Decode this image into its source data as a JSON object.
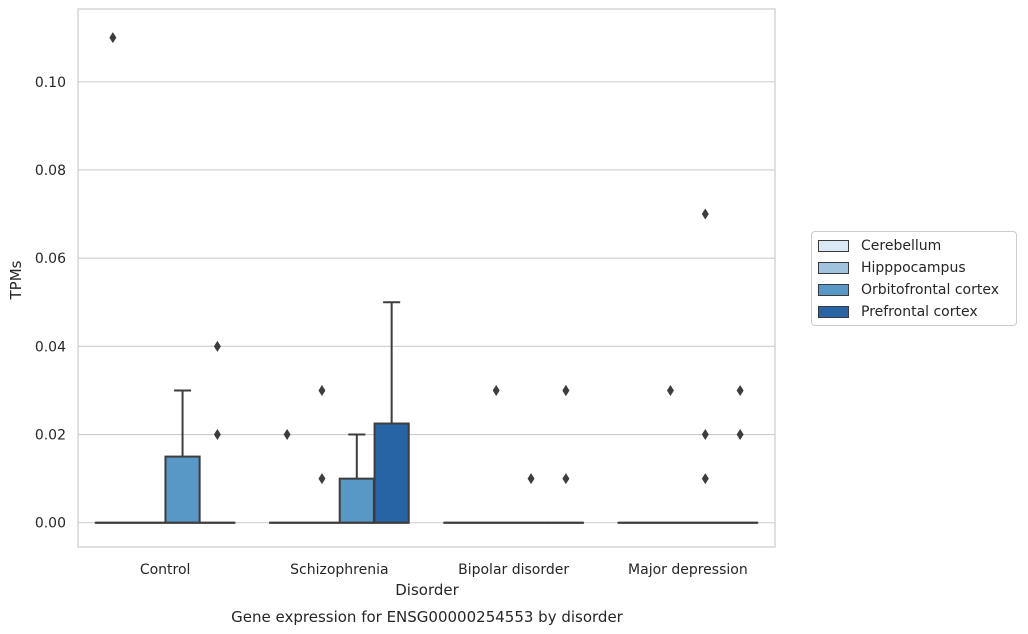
{
  "chart_data": {
    "type": "box",
    "title": "Gene expression for ENSG00000254553 by disorder",
    "xlabel": "Disorder",
    "ylabel": "TPMs",
    "ylim": [
      -0.0055,
      0.1165
    ],
    "yticks": [
      0.0,
      0.02,
      0.04,
      0.06,
      0.08,
      0.1
    ],
    "ytick_labels": [
      "0.00",
      "0.02",
      "0.04",
      "0.06",
      "0.08",
      "0.10"
    ],
    "grid": true,
    "legend_position": "right",
    "categories": [
      "Control",
      "Schizophrenia",
      "Bipolar disorder",
      "Major depression"
    ],
    "series": [
      {
        "name": "Cerebellum",
        "color": "#dbe9f6",
        "boxes": [
          {
            "q1": 0,
            "median": 0,
            "q3": 0,
            "whisker_low": 0,
            "whisker_high": 0,
            "outliers": [
              0.11
            ]
          },
          {
            "q1": 0,
            "median": 0,
            "q3": 0,
            "whisker_low": 0,
            "whisker_high": 0,
            "outliers": [
              0.02
            ]
          },
          {
            "q1": 0,
            "median": 0,
            "q3": 0,
            "whisker_low": 0,
            "whisker_high": 0,
            "outliers": []
          },
          {
            "q1": 0,
            "median": 0,
            "q3": 0,
            "whisker_low": 0,
            "whisker_high": 0,
            "outliers": []
          }
        ]
      },
      {
        "name": "Hipppocampus",
        "color": "#a0c4de",
        "boxes": [
          {
            "q1": 0,
            "median": 0,
            "q3": 0,
            "whisker_low": 0,
            "whisker_high": 0,
            "outliers": []
          },
          {
            "q1": 0,
            "median": 0,
            "q3": 0,
            "whisker_low": 0,
            "whisker_high": 0,
            "outliers": [
              0.01,
              0.03
            ]
          },
          {
            "q1": 0,
            "median": 0,
            "q3": 0,
            "whisker_low": 0,
            "whisker_high": 0,
            "outliers": [
              0.03
            ]
          },
          {
            "q1": 0,
            "median": 0,
            "q3": 0,
            "whisker_low": 0,
            "whisker_high": 0,
            "outliers": [
              0.03
            ]
          }
        ]
      },
      {
        "name": "Orbitofrontal cortex",
        "color": "#5898c6",
        "boxes": [
          {
            "q1": 0,
            "median": 0,
            "q3": 0.015,
            "whisker_low": 0,
            "whisker_high": 0.03,
            "outliers": []
          },
          {
            "q1": 0,
            "median": 0,
            "q3": 0.01,
            "whisker_low": 0,
            "whisker_high": 0.02,
            "outliers": []
          },
          {
            "q1": 0,
            "median": 0,
            "q3": 0,
            "whisker_low": 0,
            "whisker_high": 0,
            "outliers": [
              0.01
            ]
          },
          {
            "q1": 0,
            "median": 0,
            "q3": 0,
            "whisker_low": 0,
            "whisker_high": 0,
            "outliers": [
              0.01,
              0.02,
              0.07
            ]
          }
        ]
      },
      {
        "name": "Prefrontal cortex",
        "color": "#2664a6",
        "boxes": [
          {
            "q1": 0,
            "median": 0,
            "q3": 0,
            "whisker_low": 0,
            "whisker_high": 0,
            "outliers": [
              0.02,
              0.04
            ]
          },
          {
            "q1": 0,
            "median": 0,
            "q3": 0.0225,
            "whisker_low": 0,
            "whisker_high": 0.05,
            "outliers": []
          },
          {
            "q1": 0,
            "median": 0,
            "q3": 0,
            "whisker_low": 0,
            "whisker_high": 0,
            "outliers": [
              0.01,
              0.03,
              0.03
            ]
          },
          {
            "q1": 0,
            "median": 0,
            "q3": 0,
            "whisker_low": 0,
            "whisker_high": 0,
            "outliers": [
              0.02,
              0.03
            ]
          }
        ]
      }
    ]
  }
}
